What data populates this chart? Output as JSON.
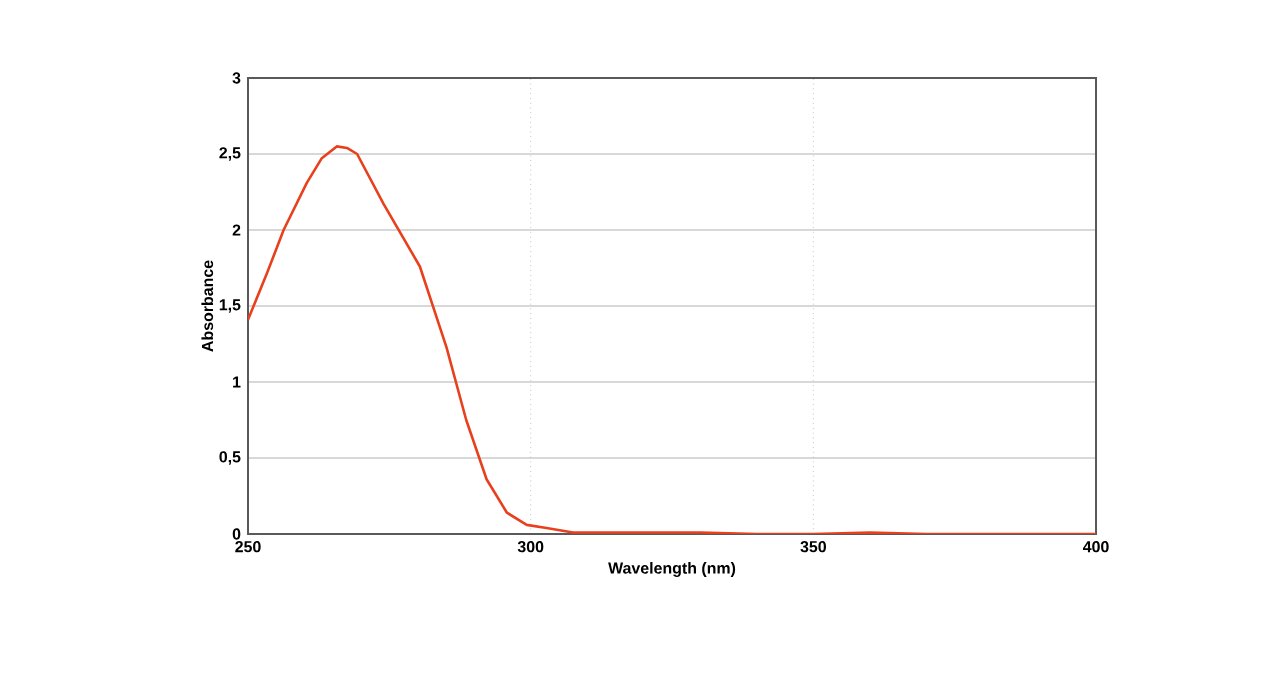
{
  "chart_data": {
    "type": "line",
    "xlabel": "Wavelength (nm)",
    "ylabel": "Absorbance",
    "x": [
      250,
      253.3,
      256.3,
      260.4,
      263,
      265.7,
      267.5,
      269.3,
      274,
      280.4,
      285.1,
      288.6,
      292.2,
      295.8,
      299.3,
      302.8,
      307.5,
      320,
      330,
      340,
      350,
      360,
      370,
      380,
      390,
      400
    ],
    "series": [
      {
        "color": "#e8401c",
        "values": [
          1.41,
          1.71,
          2.0,
          2.31,
          2.47,
          2.55,
          2.54,
          2.5,
          2.17,
          1.76,
          1.23,
          0.75,
          0.36,
          0.14,
          0.06,
          0.04,
          0.01,
          0.01,
          0.01,
          0.0,
          0.0,
          0.01,
          0.0,
          0.0,
          0.0,
          0.0
        ]
      }
    ],
    "xlim": [
      250,
      400
    ],
    "xticks": [
      250,
      300,
      350,
      400
    ],
    "ylim": [
      0,
      3
    ],
    "yticks": [
      0,
      {
        "value": 0.5,
        "label": "0,5"
      },
      1,
      {
        "value": 1.5,
        "label": "1,5"
      },
      2,
      {
        "value": 2.5,
        "label": "2,5"
      },
      3
    ],
    "grid": true,
    "line_style": "solid",
    "marker": "none"
  }
}
